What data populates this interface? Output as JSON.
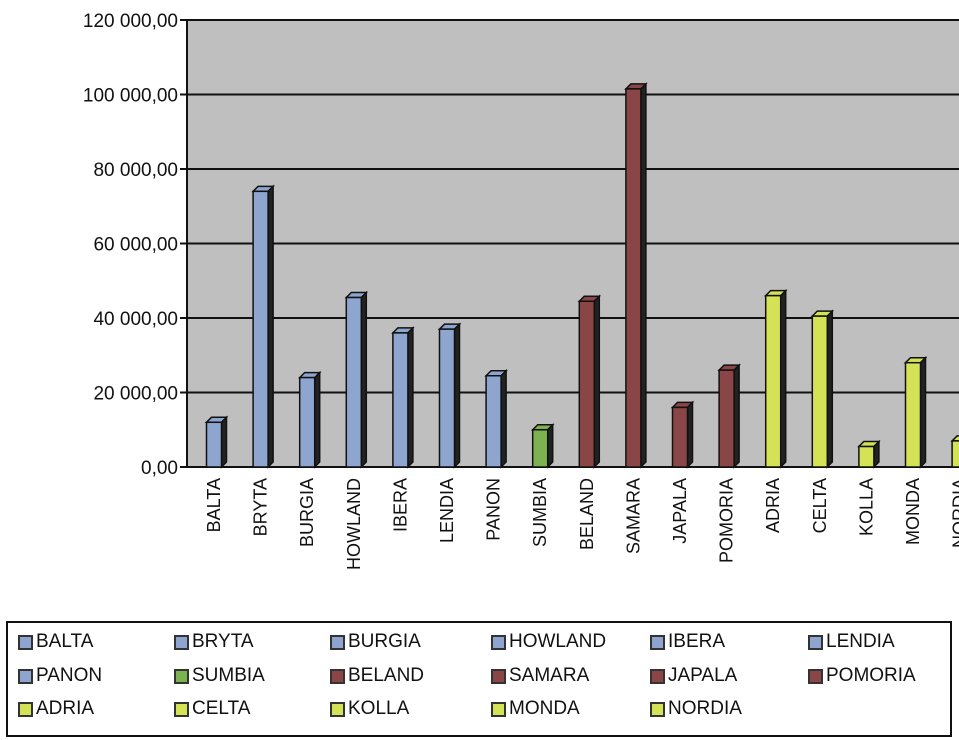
{
  "chart_data": {
    "type": "bar",
    "title": "",
    "xlabel": "",
    "ylabel": "",
    "ylim": [
      0,
      120000
    ],
    "y_ticks": [
      "0,00",
      "20 000,00",
      "40 000,00",
      "60 000,00",
      "80 000,00",
      "100 000,00",
      "120 000,00"
    ],
    "grid": true,
    "legend_position": "bottom",
    "categories": [
      "BALTA",
      "BRYTA",
      "BURGIA",
      "HOWLAND",
      "IBERA",
      "LENDIA",
      "PANON",
      "SUMBIA",
      "BELAND",
      "SAMARA",
      "JAPALA",
      "POMORIA",
      "ADRIA",
      "CELTA",
      "KOLLA",
      "MONDA",
      "NORDIA"
    ],
    "values": [
      12000,
      74000,
      24000,
      45500,
      36000,
      37000,
      24500,
      10000,
      44500,
      101500,
      16000,
      26000,
      46000,
      40500,
      5500,
      28000,
      7000
    ],
    "groups": [
      "blue",
      "blue",
      "blue",
      "blue",
      "blue",
      "blue",
      "blue",
      "green",
      "red",
      "red",
      "red",
      "red",
      "yellow",
      "yellow",
      "yellow",
      "yellow",
      "yellow"
    ],
    "colors": {
      "blue": "#8ea6cf",
      "green": "#7cb24f",
      "red": "#8a4646",
      "yellow": "#d4e255",
      "plot_bg": "#bfbfbf",
      "gridline": "#111111"
    }
  },
  "legend": {
    "items": [
      "BALTA",
      "BRYTA",
      "BURGIA",
      "HOWLAND",
      "IBERA",
      "LENDIA",
      "PANON",
      "SUMBIA",
      "BELAND",
      "SAMARA",
      "JAPALA",
      "POMORIA",
      "ADRIA",
      "CELTA",
      "KOLLA",
      "MONDA",
      "NORDIA"
    ]
  }
}
